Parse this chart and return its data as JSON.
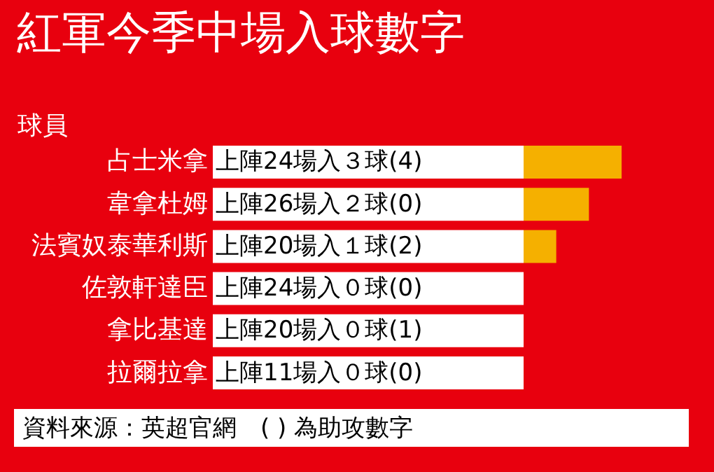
{
  "chart_data": {
    "type": "bar",
    "orientation": "horizontal",
    "title": "紅軍今季中場入球數字",
    "ylabel": "球員",
    "categories": [
      "占士米拿",
      "韋拿杜姆",
      "法賓奴泰華利斯",
      "佐敦軒達臣",
      "拿比基達",
      "拉爾拉拿"
    ],
    "values": [
      3,
      2,
      1,
      0,
      0,
      0
    ],
    "value_labels": [
      "上陣24場入３球(4)",
      "上陣26場入２球(0)",
      "上陣20場入１球(2)",
      "上陣24場入０球(0)",
      "上陣20場入０球(1)",
      "上陣11場入０球(0)"
    ],
    "color": "#f5b000",
    "annotations": [
      "資料來源：英超官網　( ) 為助攻數字"
    ]
  }
}
